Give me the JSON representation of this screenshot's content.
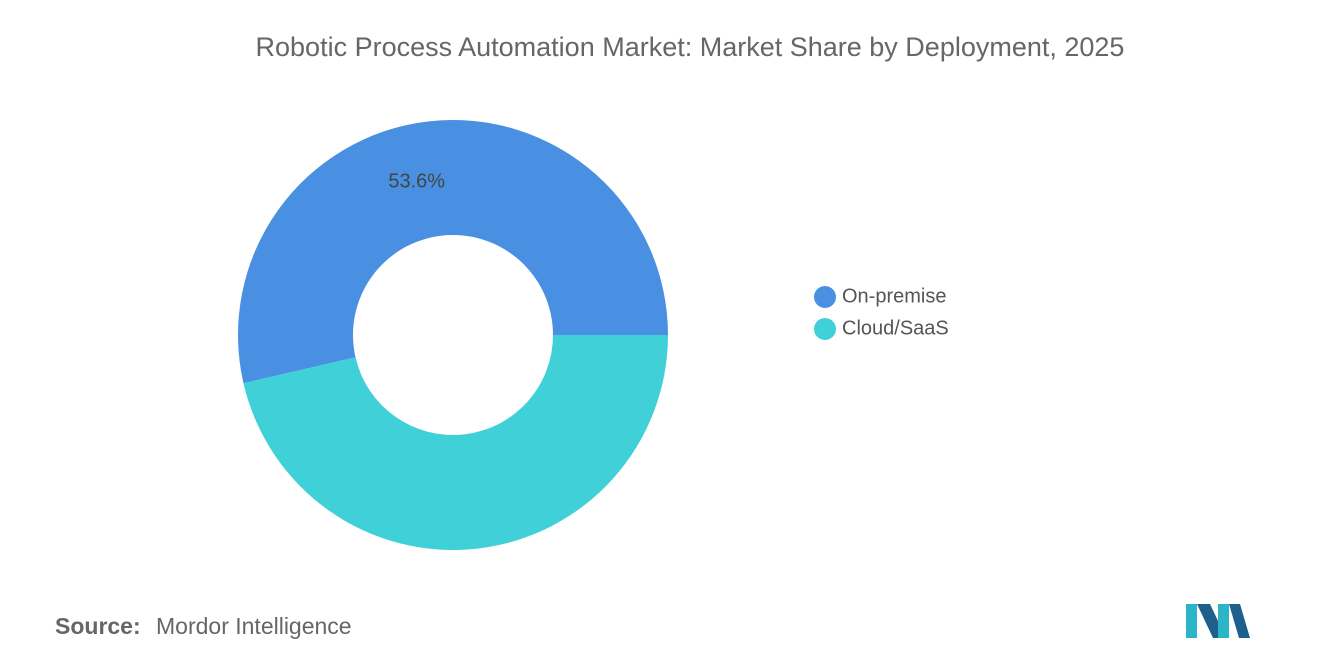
{
  "chart_data": {
    "type": "donut",
    "title": "Robotic Process Automation Market: Market Share by Deployment, 2025",
    "categories": [
      "On-premise",
      "Cloud/SaaS"
    ],
    "values": [
      53.6,
      46.4
    ],
    "value_labels": [
      "53.6%",
      null
    ],
    "colors": [
      "#4a90e2",
      "#40d0d8"
    ],
    "legend": "right"
  },
  "source": {
    "label": "Source:",
    "text": "Mordor Intelligence"
  }
}
